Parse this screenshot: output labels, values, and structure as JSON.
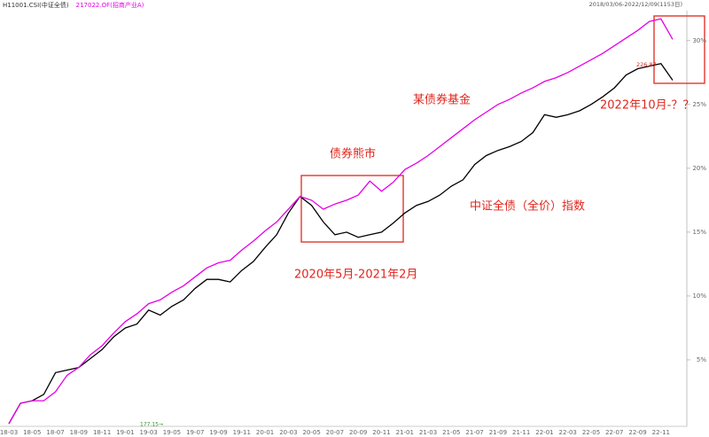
{
  "chart_data": {
    "type": "line",
    "subtitle": "2018/03/06-2022/12/09(1153日)",
    "categories": [
      "18-03",
      null,
      "18-05",
      null,
      "18-07",
      null,
      "18-09",
      null,
      "18-11",
      null,
      "19-01",
      null,
      "19-03",
      null,
      "19-05",
      null,
      "19-07",
      null,
      "19-09",
      null,
      "19-11",
      null,
      "20-01",
      null,
      "20-03",
      null,
      "20-05",
      null,
      "20-07",
      null,
      "20-09",
      null,
      "20-11",
      null,
      "21-01",
      null,
      "21-03",
      null,
      "21-05",
      null,
      "21-07",
      null,
      "21-09",
      null,
      "21-11",
      null,
      "22-01",
      null,
      "22-03",
      null,
      "22-05",
      null,
      "22-07",
      null,
      "22-09",
      null,
      "22-11",
      null
    ],
    "series": [
      {
        "name": "H11001.CSI(中证全债)",
        "color": "#000000",
        "values": [
          0,
          1.6,
          1.8,
          2.3,
          4.0,
          4.2,
          4.4,
          5.1,
          5.8,
          6.8,
          7.5,
          7.8,
          8.9,
          8.5,
          9.2,
          9.7,
          10.6,
          11.3,
          11.3,
          11.1,
          12.0,
          12.7,
          13.8,
          14.8,
          16.5,
          17.8,
          17.1,
          15.8,
          14.8,
          15.0,
          14.6,
          14.8,
          15.0,
          15.7,
          16.5,
          17.1,
          17.4,
          17.9,
          18.6,
          19.1,
          20.3,
          21.0,
          21.4,
          21.7,
          22.1,
          22.8,
          24.2,
          24.0,
          24.2,
          24.5,
          25.0,
          25.6,
          26.3,
          27.3,
          27.8,
          28.0,
          28.2,
          26.9
        ]
      },
      {
        "name": "217022.OF(招商产业A)",
        "color": "#e600e6",
        "values": [
          0,
          1.6,
          1.8,
          1.8,
          2.5,
          3.8,
          4.4,
          5.4,
          6.1,
          7.1,
          8.0,
          8.6,
          9.4,
          9.7,
          10.3,
          10.8,
          11.5,
          12.2,
          12.6,
          12.8,
          13.6,
          14.3,
          15.1,
          15.8,
          16.8,
          17.8,
          17.5,
          16.8,
          17.2,
          17.5,
          17.9,
          19.0,
          18.2,
          18.9,
          19.9,
          20.4,
          21.0,
          21.7,
          22.4,
          23.1,
          23.8,
          24.4,
          25.0,
          25.4,
          25.9,
          26.3,
          26.8,
          27.1,
          27.5,
          28.0,
          28.5,
          29.0,
          29.6,
          30.2,
          30.8,
          31.5,
          31.7,
          30.1
        ]
      }
    ],
    "ylim": [
      0,
      32
    ],
    "yticks": [
      {
        "value": 5,
        "label": "5%"
      },
      {
        "value": 10,
        "label": "10%"
      },
      {
        "value": 15,
        "label": "15%"
      },
      {
        "value": 20,
        "label": "20%"
      },
      {
        "value": 25,
        "label": "25%"
      },
      {
        "value": 30,
        "label": "30%"
      }
    ],
    "grid": false,
    "annotations": [
      "某债券基金",
      "债券熊市",
      "中证全债（全价）指数",
      "2020年5月-2021年2月",
      "2022年10月-？？",
      "226.87",
      "177.15→"
    ]
  }
}
